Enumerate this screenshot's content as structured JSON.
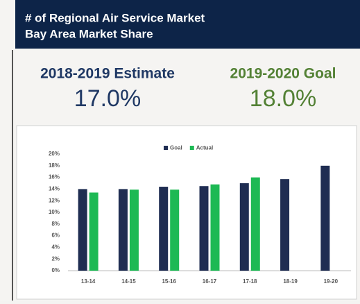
{
  "header": {
    "title_lines": [
      "# of Regional Air Service Market",
      "Bay Area Market Share"
    ]
  },
  "kpis": [
    {
      "label": "2018-2019 Estimate",
      "value": "17.0%"
    },
    {
      "label": "2019-2020 Goal",
      "value": "18.0%"
    }
  ],
  "chart_data": {
    "type": "bar",
    "categories": [
      "13-14",
      "14-15",
      "15-16",
      "16-17",
      "17-18",
      "18-19",
      "19-20"
    ],
    "series": [
      {
        "name": "Goal",
        "color": "#1f2d52",
        "values": [
          14,
          14,
          14.4,
          14.5,
          15,
          15.7,
          18
        ]
      },
      {
        "name": "Actual",
        "color": "#1db954",
        "values": [
          13.4,
          13.9,
          13.9,
          14.8,
          16,
          null,
          null
        ]
      }
    ],
    "ylim": [
      0,
      20
    ],
    "yticks": [
      {
        "value": 0,
        "label": "0%"
      },
      {
        "value": 2,
        "label": "2%"
      },
      {
        "value": 4,
        "label": "4%"
      },
      {
        "value": 6,
        "label": "6%"
      },
      {
        "value": 8,
        "label": "8%"
      },
      {
        "value": 10,
        "label": "10%"
      },
      {
        "value": 12,
        "label": "12%"
      },
      {
        "value": 14,
        "label": "14%"
      },
      {
        "value": 16,
        "label": "16%"
      },
      {
        "value": 18,
        "label": "18%"
      },
      {
        "value": 20,
        "label": "20%"
      }
    ],
    "legend": "top",
    "grid": false
  }
}
